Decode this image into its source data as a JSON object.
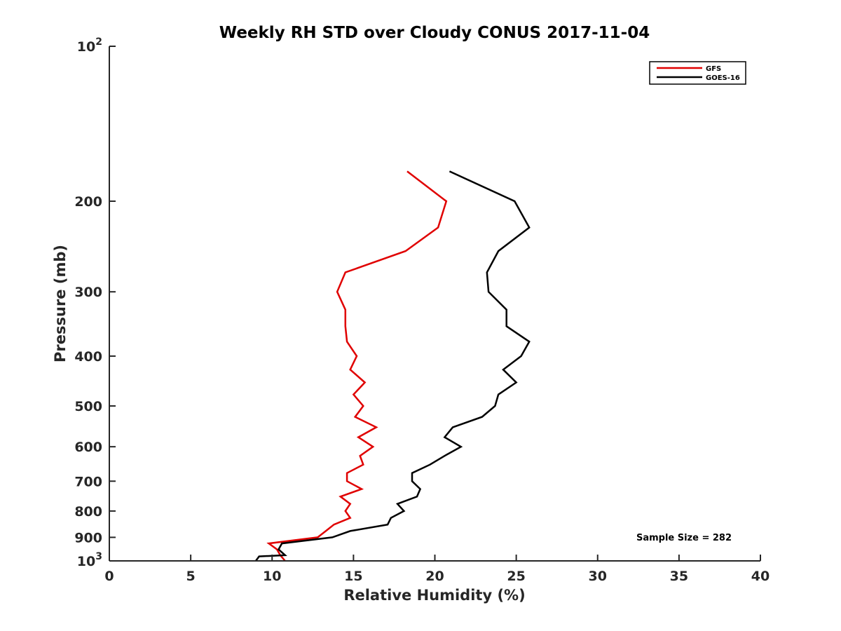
{
  "chart_data": {
    "type": "line",
    "title": "Weekly RH STD over Cloudy CONUS 2017-11-04",
    "xlabel": "Relative Humidity (%)",
    "ylabel": "Pressure (mb)",
    "xlim": [
      0,
      40
    ],
    "ylim": [
      100,
      1000
    ],
    "y_scale": "log",
    "y_reversed": true,
    "grid": false,
    "legend_position": "top-right",
    "x_ticks": [
      "0",
      "5",
      "10",
      "15",
      "20",
      "25",
      "30",
      "35",
      "40"
    ],
    "y_ticks": [
      {
        "value": 100,
        "base": "10",
        "exp": "2"
      },
      {
        "value": 200,
        "label": "200"
      },
      {
        "value": 300,
        "label": "300"
      },
      {
        "value": 400,
        "label": "400"
      },
      {
        "value": 500,
        "label": "500"
      },
      {
        "value": 600,
        "label": "600"
      },
      {
        "value": 700,
        "label": "700"
      },
      {
        "value": 800,
        "label": "800"
      },
      {
        "value": 900,
        "label": "900"
      },
      {
        "value": 1000,
        "base": "10",
        "exp": "3"
      }
    ],
    "annotation": "Sample Size = 282",
    "series": [
      {
        "name": "GFS",
        "color": "#e00000",
        "points": [
          [
            18.3,
            175
          ],
          [
            20.7,
            200
          ],
          [
            20.2,
            225
          ],
          [
            18.2,
            250
          ],
          [
            14.5,
            275
          ],
          [
            14.0,
            300
          ],
          [
            14.5,
            325
          ],
          [
            14.5,
            350
          ],
          [
            14.6,
            375
          ],
          [
            15.2,
            400
          ],
          [
            14.8,
            425
          ],
          [
            15.7,
            450
          ],
          [
            15.0,
            475
          ],
          [
            15.6,
            500
          ],
          [
            15.1,
            525
          ],
          [
            16.4,
            550
          ],
          [
            15.3,
            575
          ],
          [
            16.2,
            600
          ],
          [
            15.4,
            625
          ],
          [
            15.6,
            650
          ],
          [
            14.6,
            675
          ],
          [
            14.6,
            700
          ],
          [
            15.5,
            725
          ],
          [
            14.2,
            750
          ],
          [
            14.8,
            775
          ],
          [
            14.5,
            800
          ],
          [
            14.8,
            825
          ],
          [
            13.8,
            850
          ],
          [
            13.3,
            875
          ],
          [
            12.8,
            900
          ],
          [
            9.8,
            925
          ],
          [
            10.3,
            950
          ],
          [
            10.5,
            975
          ],
          [
            10.8,
            1000
          ]
        ]
      },
      {
        "name": "GOES-16",
        "color": "#000000",
        "points": [
          [
            20.9,
            175
          ],
          [
            24.9,
            200
          ],
          [
            25.8,
            225
          ],
          [
            23.9,
            250
          ],
          [
            23.2,
            275
          ],
          [
            23.3,
            300
          ],
          [
            24.4,
            325
          ],
          [
            24.4,
            350
          ],
          [
            25.8,
            375
          ],
          [
            25.3,
            400
          ],
          [
            24.2,
            425
          ],
          [
            25.0,
            450
          ],
          [
            23.9,
            475
          ],
          [
            23.7,
            500
          ],
          [
            22.9,
            525
          ],
          [
            21.1,
            550
          ],
          [
            20.6,
            575
          ],
          [
            21.6,
            600
          ],
          [
            20.6,
            625
          ],
          [
            19.7,
            650
          ],
          [
            18.6,
            675
          ],
          [
            18.6,
            700
          ],
          [
            19.1,
            725
          ],
          [
            18.9,
            750
          ],
          [
            17.7,
            775
          ],
          [
            18.1,
            800
          ],
          [
            17.3,
            825
          ],
          [
            17.1,
            850
          ],
          [
            14.8,
            875
          ],
          [
            13.7,
            900
          ],
          [
            10.6,
            925
          ],
          [
            10.4,
            950
          ],
          [
            10.8,
            975
          ],
          [
            9.2,
            980
          ],
          [
            9.0,
            1000
          ]
        ]
      }
    ]
  }
}
